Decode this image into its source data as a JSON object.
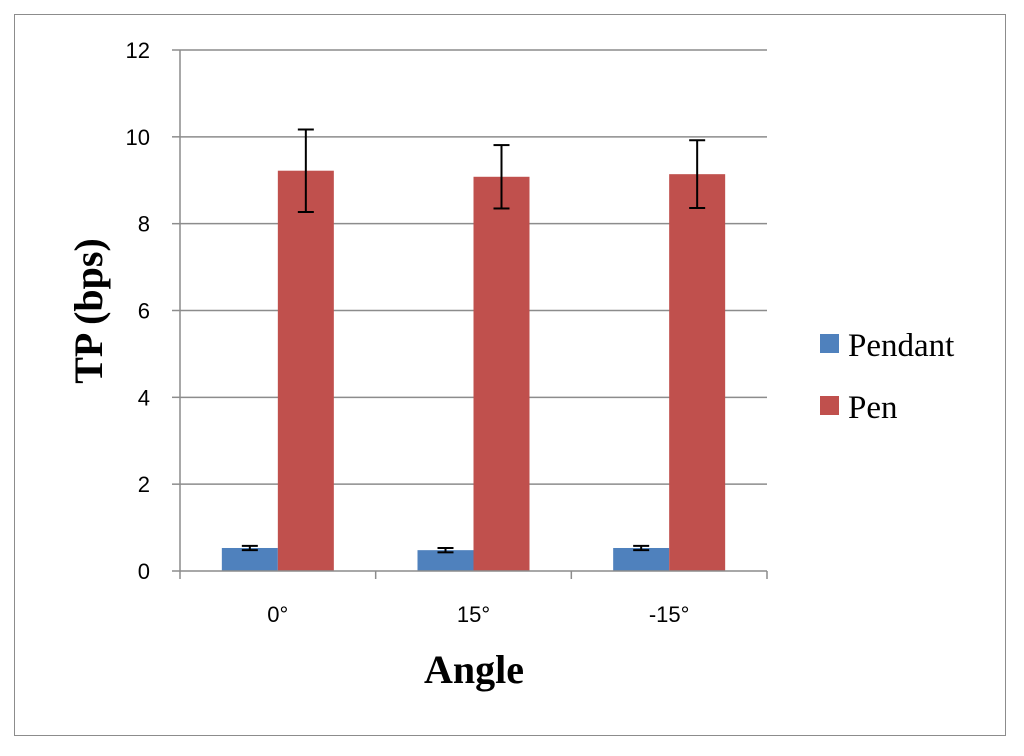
{
  "chart_data": {
    "type": "bar",
    "title": "",
    "xlabel": "Angle",
    "ylabel": "TP (bps)",
    "categories": [
      "0°",
      "15°",
      "-15°"
    ],
    "ylim": [
      0,
      12
    ],
    "yticks": [
      "0",
      "2",
      "4",
      "6",
      "8",
      "10",
      "12"
    ],
    "grid": true,
    "legend_position": "right",
    "series": [
      {
        "name": "Pendant",
        "color": "#4f81bd",
        "values": [
          0.53,
          0.48,
          0.53
        ],
        "errors": [
          0.05,
          0.05,
          0.05
        ]
      },
      {
        "name": "Pen",
        "color": "#c0504d",
        "values": [
          9.22,
          9.08,
          9.14
        ],
        "errors": [
          0.95,
          0.73,
          0.78
        ]
      }
    ]
  }
}
